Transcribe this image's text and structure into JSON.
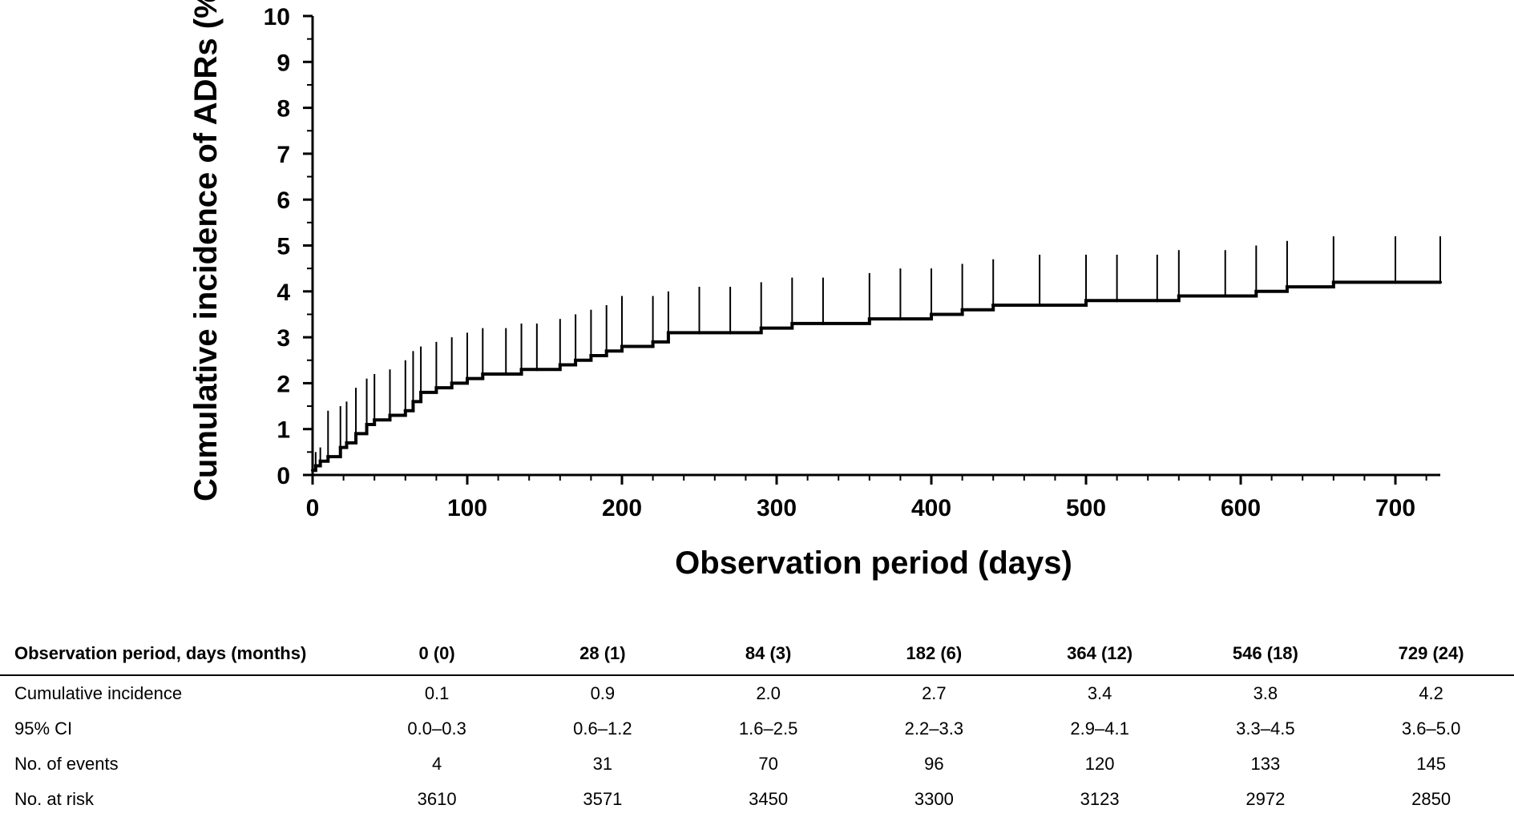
{
  "chart_data": {
    "type": "line",
    "title": "",
    "xlabel": "Observation period (days)",
    "ylabel": "Cumulative incidence of ADRs (%)",
    "xlim": [
      0,
      729
    ],
    "ylim": [
      0,
      10
    ],
    "xticks": [
      0,
      100,
      200,
      300,
      400,
      500,
      600,
      700
    ],
    "yticks": [
      0,
      1,
      2,
      3,
      4,
      5,
      6,
      7,
      8,
      9,
      10
    ],
    "grid": false,
    "legend": "none",
    "series": [
      {
        "name": "",
        "style": "step",
        "color": "#000000",
        "x": [
          0,
          2,
          5,
          10,
          18,
          22,
          28,
          35,
          40,
          50,
          60,
          65,
          70,
          80,
          90,
          100,
          110,
          125,
          135,
          145,
          160,
          170,
          180,
          190,
          200,
          220,
          230,
          250,
          270,
          290,
          310,
          330,
          360,
          380,
          400,
          420,
          440,
          470,
          500,
          520,
          546,
          560,
          590,
          610,
          630,
          660,
          700,
          729
        ],
        "y": [
          0.1,
          0.2,
          0.3,
          0.4,
          0.6,
          0.7,
          0.9,
          1.1,
          1.2,
          1.3,
          1.4,
          1.6,
          1.8,
          1.9,
          2.0,
          2.1,
          2.2,
          2.2,
          2.3,
          2.3,
          2.4,
          2.5,
          2.6,
          2.7,
          2.8,
          2.9,
          3.1,
          3.1,
          3.1,
          3.2,
          3.3,
          3.3,
          3.4,
          3.4,
          3.5,
          3.6,
          3.7,
          3.7,
          3.8,
          3.8,
          3.8,
          3.9,
          3.9,
          4.0,
          4.1,
          4.2,
          4.2,
          4.2
        ]
      },
      {
        "name": "",
        "style": "spikes",
        "color": "#000000",
        "x": [
          0,
          2,
          5,
          10,
          18,
          22,
          28,
          35,
          40,
          50,
          60,
          65,
          70,
          80,
          90,
          100,
          110,
          125,
          135,
          145,
          160,
          170,
          180,
          190,
          200,
          220,
          230,
          250,
          270,
          290,
          310,
          330,
          360,
          380,
          400,
          420,
          440,
          470,
          500,
          520,
          546,
          560,
          590,
          610,
          630,
          660,
          700,
          729
        ],
        "y": [
          0.2,
          0.5,
          0.6,
          1.4,
          1.5,
          1.6,
          1.9,
          2.1,
          2.2,
          2.3,
          2.5,
          2.7,
          2.8,
          2.9,
          3.0,
          3.1,
          3.2,
          3.2,
          3.3,
          3.3,
          3.4,
          3.5,
          3.6,
          3.7,
          3.9,
          3.9,
          4.0,
          4.1,
          4.1,
          4.2,
          4.3,
          4.3,
          4.4,
          4.5,
          4.5,
          4.6,
          4.7,
          4.8,
          4.8,
          4.8,
          4.8,
          4.9,
          4.9,
          5.0,
          5.1,
          5.2,
          5.2,
          5.2
        ]
      }
    ]
  },
  "table": {
    "header": [
      "Observation period, days (months)",
      "0 (0)",
      "28 (1)",
      "84 (3)",
      "182 (6)",
      "364 (12)",
      "546 (18)",
      "729 (24)"
    ],
    "rows": [
      [
        "Cumulative incidence",
        "0.1",
        "0.9",
        "2.0",
        "2.7",
        "3.4",
        "3.8",
        "4.2"
      ],
      [
        "95% CI",
        "0.0–0.3",
        "0.6–1.2",
        "1.6–2.5",
        "2.2–3.3",
        "2.9–4.1",
        "3.3–4.5",
        "3.6–5.0"
      ],
      [
        "No. of events",
        "4",
        "31",
        "70",
        "96",
        "120",
        "133",
        "145"
      ],
      [
        "No. at risk",
        "3610",
        "3571",
        "3450",
        "3300",
        "3123",
        "2972",
        "2850"
      ]
    ]
  }
}
